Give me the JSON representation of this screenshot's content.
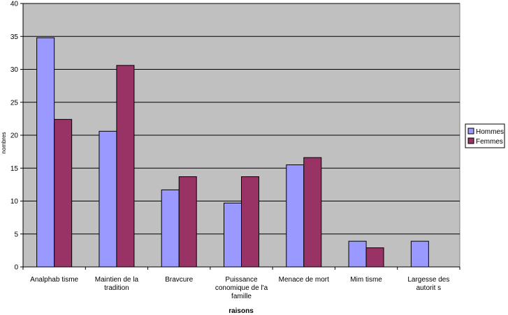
{
  "chart_data": {
    "type": "bar",
    "categories": [
      "Analphab  tisme",
      "Maintien de la\ntradition",
      "Bravcure",
      "Puissance\nconomique de l'a\nfamille",
      "Menace de mort",
      "Mim  tisme",
      "Largesse des\nautorit  s"
    ],
    "series": [
      {
        "name": "Hommes",
        "color": "#9999ff",
        "values": [
          34.8,
          20.6,
          11.7,
          9.7,
          15.5,
          3.9,
          3.9
        ]
      },
      {
        "name": "Femmes",
        "color": "#993366",
        "values": [
          22.4,
          30.6,
          13.7,
          13.7,
          16.6,
          2.9,
          0
        ]
      }
    ],
    "xlabel": "raisons",
    "ylabel": "nombres",
    "ylim": [
      0,
      40
    ],
    "yticks": [
      0,
      5,
      10,
      15,
      20,
      25,
      30,
      35,
      40
    ],
    "grid": true,
    "plot_background": "#c0c0c0",
    "legend_position": "right"
  }
}
